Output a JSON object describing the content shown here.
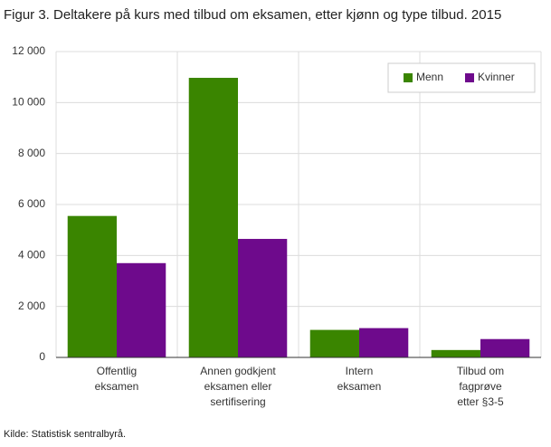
{
  "chart_data": {
    "type": "bar",
    "title": "Figur 3. Deltakere på kurs med tilbud om eksamen, etter kjønn og type tilbud. 2015",
    "source": "Kilde: Statistisk sentralbyrå.",
    "categories": [
      [
        "Offentlig",
        "eksamen"
      ],
      [
        "Annen godkjent",
        "eksamen eller",
        "sertifisering"
      ],
      [
        "Intern",
        "eksamen"
      ],
      [
        "Tilbud om",
        "fagprøve",
        "etter §3-5"
      ]
    ],
    "series": [
      {
        "name": "Menn",
        "color": "#3a8500",
        "values": [
          5550,
          10970,
          1080,
          290
        ]
      },
      {
        "name": "Kvinner",
        "color": "#6e0a8c",
        "values": [
          3700,
          4650,
          1150,
          720
        ]
      }
    ],
    "ylim": [
      0,
      12000
    ],
    "yticks": [
      {
        "value": 0,
        "label": "0"
      },
      {
        "value": 2000,
        "label": "2 000"
      },
      {
        "value": 4000,
        "label": "4 000"
      },
      {
        "value": 6000,
        "label": "6 000"
      },
      {
        "value": 8000,
        "label": "8 000"
      },
      {
        "value": 10000,
        "label": "10 000"
      },
      {
        "value": 12000,
        "label": "12 000"
      }
    ],
    "grid": true,
    "legend": "top-right"
  }
}
